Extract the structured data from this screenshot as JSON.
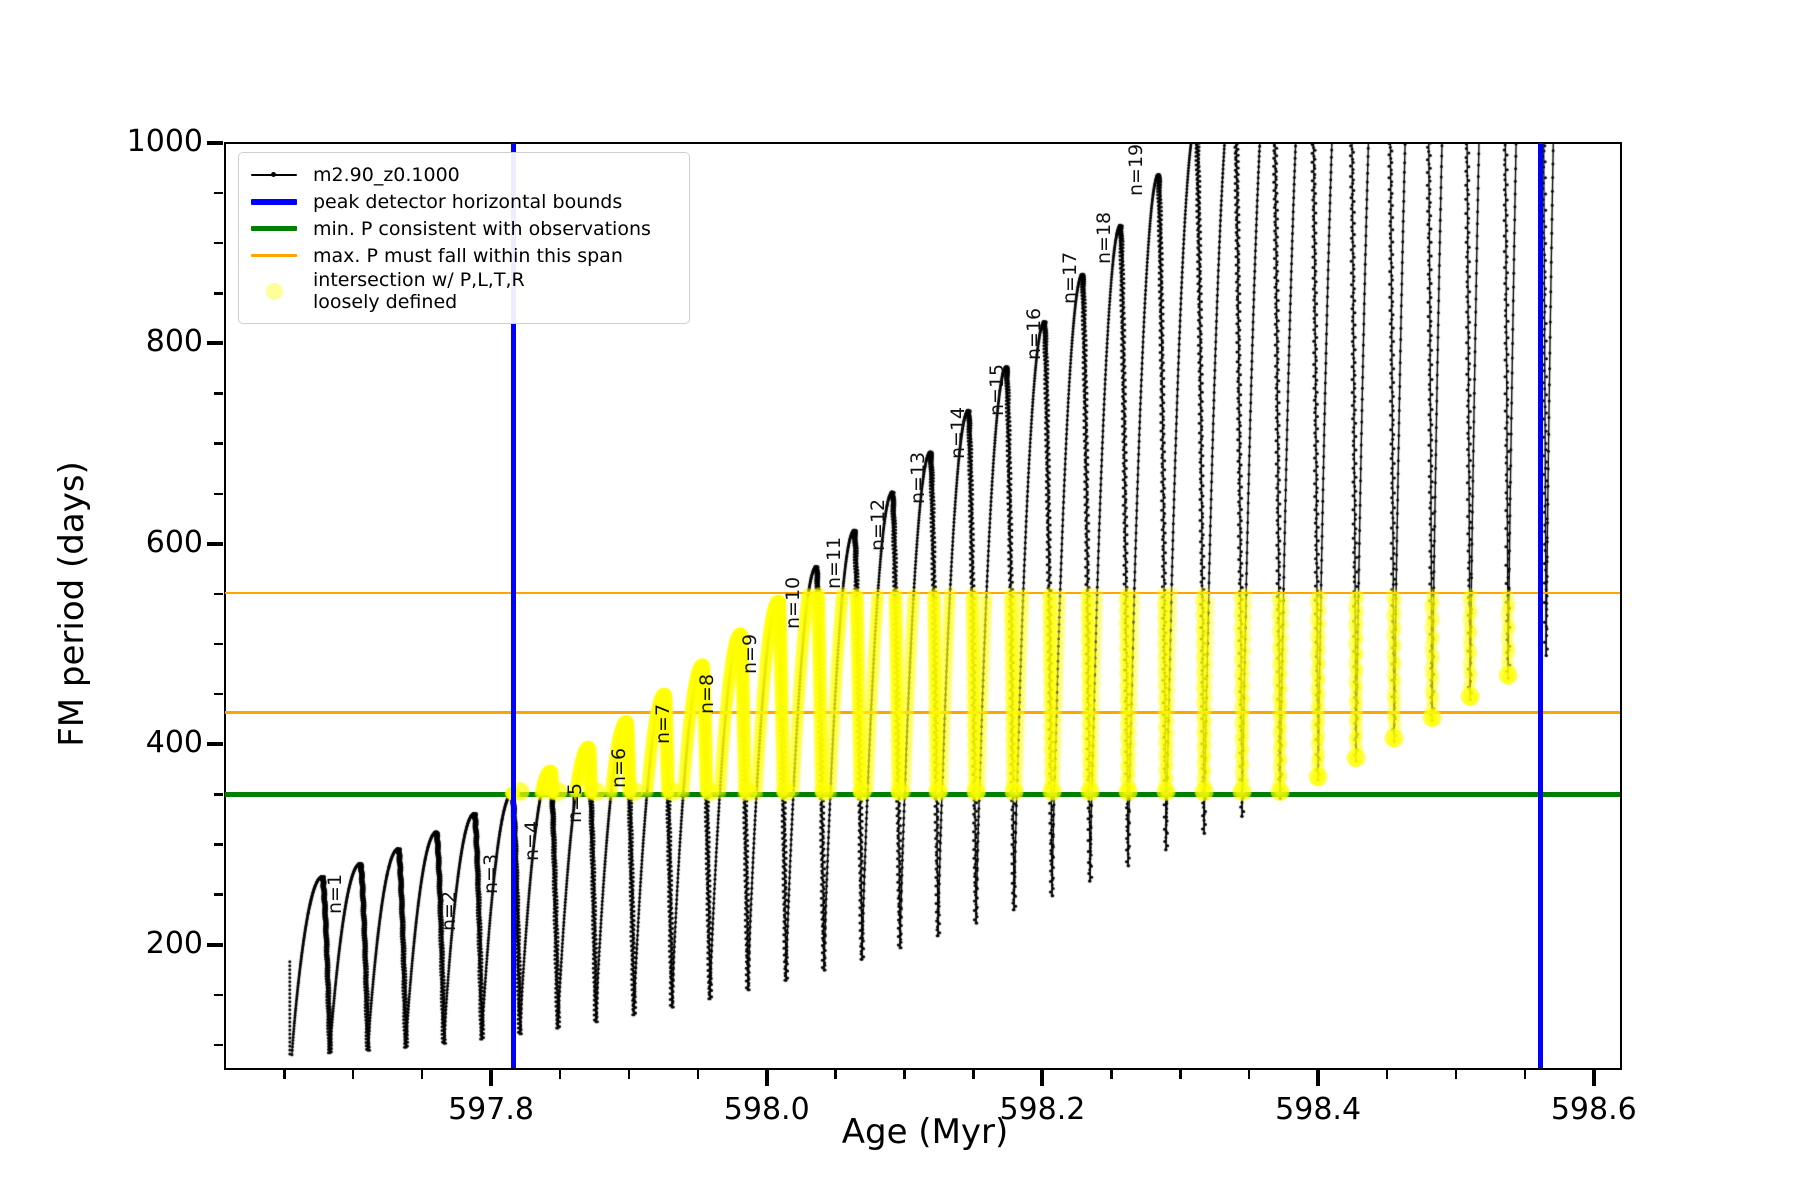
{
  "figure": {
    "background": "#ffffff"
  },
  "chart_data": {
    "type": "line",
    "title": "",
    "xlabel": "Age (Myr)",
    "ylabel": "FM period (days)",
    "xlim": [
      597.607,
      598.619
    ],
    "ylim": [
      77,
      1000
    ],
    "x_major_ticks": [
      597.8,
      598.0,
      598.2,
      598.4,
      598.6
    ],
    "x_major_labels": [
      "597.8",
      "598.0",
      "598.2",
      "598.4",
      "598.6"
    ],
    "x_minor_step": 0.05,
    "y_major_ticks": [
      200,
      400,
      600,
      800,
      1000
    ],
    "y_major_labels": [
      "200",
      "400",
      "600",
      "800",
      "1000"
    ],
    "y_minor_step": 50,
    "grid": false,
    "legend": {
      "position": "upper-left",
      "entries": [
        {
          "label": "m2.90_z0.1000",
          "type": "line-marker",
          "color": "#000000"
        },
        {
          "label": "peak detector horizontal bounds",
          "type": "line",
          "color": "#0000ff"
        },
        {
          "label": "min. P consistent with observations",
          "type": "line",
          "color": "#008000"
        },
        {
          "label": "max. P must fall within this span",
          "type": "line",
          "color": "#ffa500"
        },
        {
          "label": "intersection w/ P,L,T,R",
          "label2": "loosely defined",
          "type": "marker",
          "color": "rgba(255,255,0,0.4)"
        }
      ]
    },
    "series": {
      "name": "m2.90_z0.1000",
      "color": "#000000",
      "pulse_model": {
        "comment": "thermal-pulse-like arches: each pulse rises from base to tip then drops to next base; periods in days, ages in Myr",
        "start_age": 597.6556,
        "spacing": 0.02757,
        "rise_frac": 0.8,
        "count": 34,
        "tip_periods": [
          268,
          281.1,
          295.9,
          312.5,
          331,
          351.2,
          373.2,
          397,
          422.6,
          450,
          479.2,
          510.1,
          542.8,
          577.4,
          613.7,
          651.8,
          691.7,
          733.3,
          776.8,
          822,
          869.1,
          917.9,
          968.5,
          1020.9,
          1075.1,
          1131,
          1188.8,
          1248.3,
          1309.6,
          1372.7,
          1437.6,
          1504.3,
          1572.7,
          1642.9
        ],
        "base_periods": [
          90.2,
          92.1,
          94.6,
          97.8,
          101.6,
          106,
          111.1,
          116.8,
          123.2,
          130.2,
          137.8,
          146.1,
          155,
          164.5,
          174.7,
          185.5,
          197,
          209,
          221.7,
          235,
          249,
          263.6,
          278.8,
          294.7,
          311.2,
          328.3,
          346.1,
          364.6,
          383.7,
          403.3,
          423.7,
          444.7,
          466.2,
          488.5
        ],
        "lead_in": {
          "age": 597.654,
          "from_period": 183,
          "to_period": 90
        },
        "last_pulse_rise_only": true
      }
    },
    "peak_bounds": {
      "label": "peak detector horizontal bounds",
      "color": "#0000ff",
      "ages": [
        597.816,
        598.561
      ]
    },
    "min_p": {
      "label": "min. P consistent with observations",
      "color": "#008000",
      "value": 350
    },
    "max_p_span": {
      "label": "max. P must fall within this span",
      "color": "#ffa500",
      "values": [
        551,
        432
      ]
    },
    "intersection_band": {
      "label": "intersection w/ P,L,T,R loosely defined",
      "color": "#ffff00",
      "period_range": [
        350,
        551
      ],
      "age_range": [
        597.815,
        598.561
      ]
    },
    "annotations": [
      {
        "label": "n=1",
        "age": 597.686,
        "period": 252
      },
      {
        "label": "n=2",
        "age": 597.769,
        "period": 235
      },
      {
        "label": "n=3",
        "age": 597.799,
        "period": 272
      },
      {
        "label": "n=4",
        "age": 597.829,
        "period": 305
      },
      {
        "label": "n=5",
        "age": 597.86,
        "period": 342
      },
      {
        "label": "n=6",
        "age": 597.892,
        "period": 377
      },
      {
        "label": "n=7",
        "age": 597.924,
        "period": 421
      },
      {
        "label": "n=8",
        "age": 597.956,
        "period": 451
      },
      {
        "label": "n=9",
        "age": 597.987,
        "period": 491
      },
      {
        "label": "n=10",
        "age": 598.018,
        "period": 536
      },
      {
        "label": "n=11",
        "age": 598.048,
        "period": 576
      },
      {
        "label": "n=12",
        "age": 598.08,
        "period": 614
      },
      {
        "label": "n=13",
        "age": 598.109,
        "period": 661
      },
      {
        "label": "n=14",
        "age": 598.138,
        "period": 706
      },
      {
        "label": "n=15",
        "age": 598.166,
        "period": 749
      },
      {
        "label": "n=16",
        "age": 598.193,
        "period": 804
      },
      {
        "label": "n=17",
        "age": 598.219,
        "period": 860
      },
      {
        "label": "n=18",
        "age": 598.244,
        "period": 900
      },
      {
        "label": "n=19",
        "age": 598.267,
        "period": 968
      }
    ]
  }
}
